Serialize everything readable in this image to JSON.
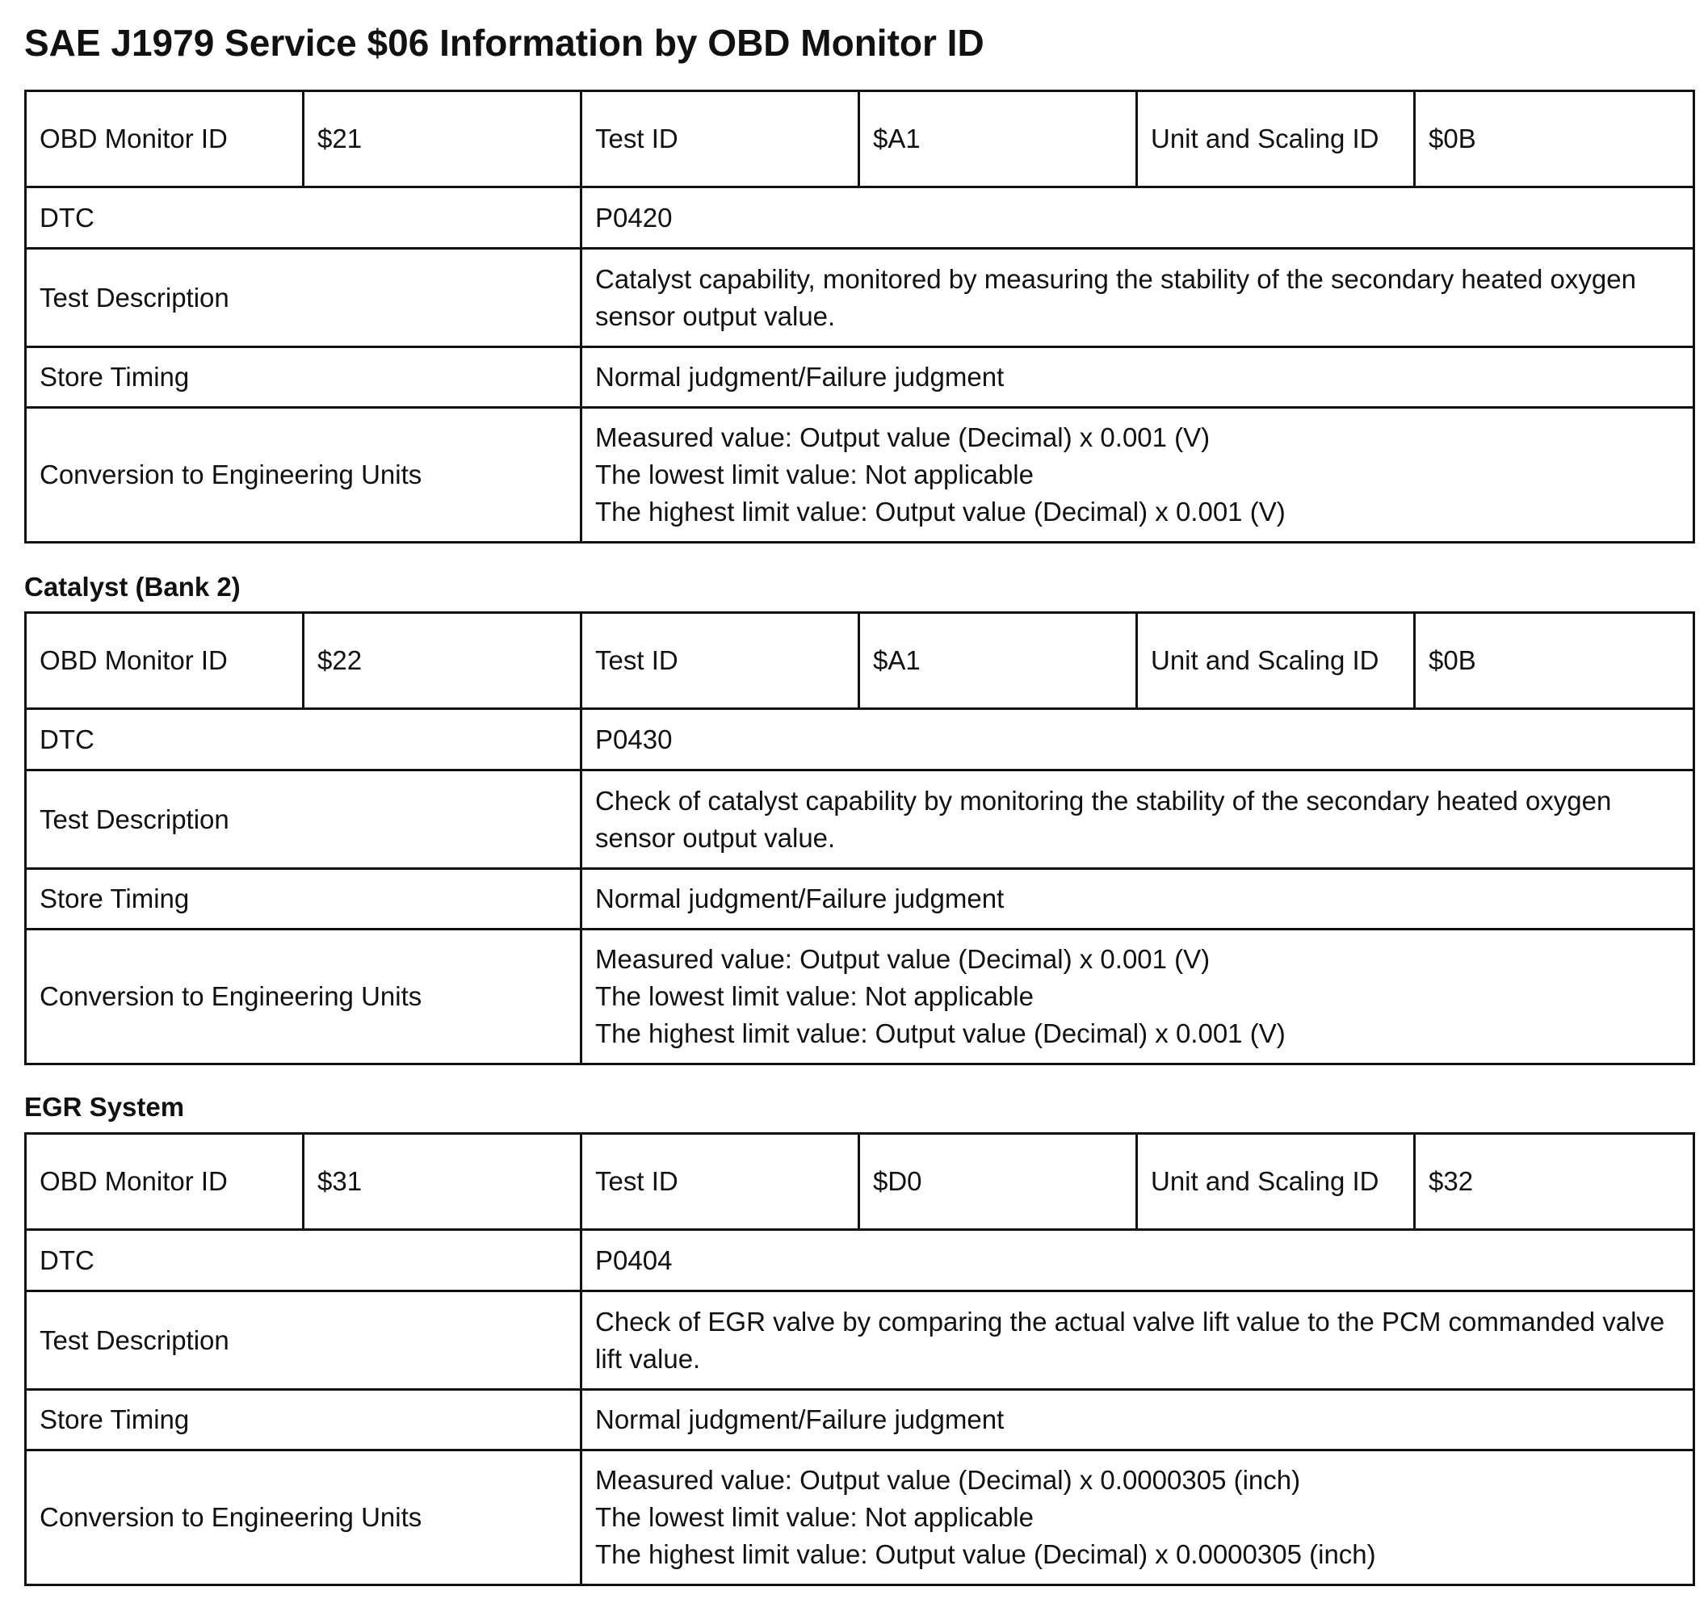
{
  "title": "SAE J1979 Service $06 Information by OBD Monitor ID",
  "sections": [
    {
      "heading": "",
      "obd_monitor_id_label": "OBD Monitor ID",
      "obd_monitor_id": "$21",
      "test_id_label": "Test ID",
      "test_id": "$A1",
      "unit_scaling_label": "Unit and Scaling ID",
      "unit_scaling_id": "$0B",
      "dtc_label": "DTC",
      "dtc": "P0420",
      "test_description_label": "Test Description",
      "test_description": "Catalyst capability, monitored by measuring the stability of the secondary heated oxygen sensor output value.",
      "store_timing_label": "Store Timing",
      "store_timing": "Normal judgment/Failure judgment",
      "conversion_label": "Conversion to Engineering Units",
      "conversion": [
        "Measured value: Output value (Decimal) x 0.001 (V)",
        "The lowest limit value: Not applicable",
        "The highest limit value: Output value (Decimal) x 0.001 (V)"
      ]
    },
    {
      "heading": "Catalyst (Bank 2)",
      "obd_monitor_id_label": "OBD Monitor ID",
      "obd_monitor_id": "$22",
      "test_id_label": "Test ID",
      "test_id": "$A1",
      "unit_scaling_label": "Unit and Scaling ID",
      "unit_scaling_id": "$0B",
      "dtc_label": "DTC",
      "dtc": "P0430",
      "test_description_label": "Test Description",
      "test_description": "Check of catalyst capability by monitoring the stability of the secondary heated oxygen sensor output value.",
      "store_timing_label": "Store Timing",
      "store_timing": "Normal judgment/Failure judgment",
      "conversion_label": "Conversion to Engineering Units",
      "conversion": [
        "Measured value: Output value (Decimal) x 0.001 (V)",
        "The lowest limit value: Not applicable",
        "The highest limit value: Output value (Decimal) x 0.001 (V)"
      ]
    },
    {
      "heading": "EGR System",
      "obd_monitor_id_label": "OBD Monitor ID",
      "obd_monitor_id": "$31",
      "test_id_label": "Test ID",
      "test_id": "$D0",
      "unit_scaling_label": "Unit and Scaling ID",
      "unit_scaling_id": "$32",
      "dtc_label": "DTC",
      "dtc": "P0404",
      "test_description_label": "Test Description",
      "test_description": "Check of EGR valve by comparing the actual valve lift value to the PCM commanded valve lift value.",
      "store_timing_label": "Store Timing",
      "store_timing": "Normal judgment/Failure judgment",
      "conversion_label": "Conversion to Engineering Units",
      "conversion": [
        "Measured value: Output value (Decimal) x 0.0000305 (inch)",
        "The lowest limit value: Not applicable",
        "The highest limit value: Output value (Decimal) x 0.0000305 (inch)"
      ]
    }
  ]
}
